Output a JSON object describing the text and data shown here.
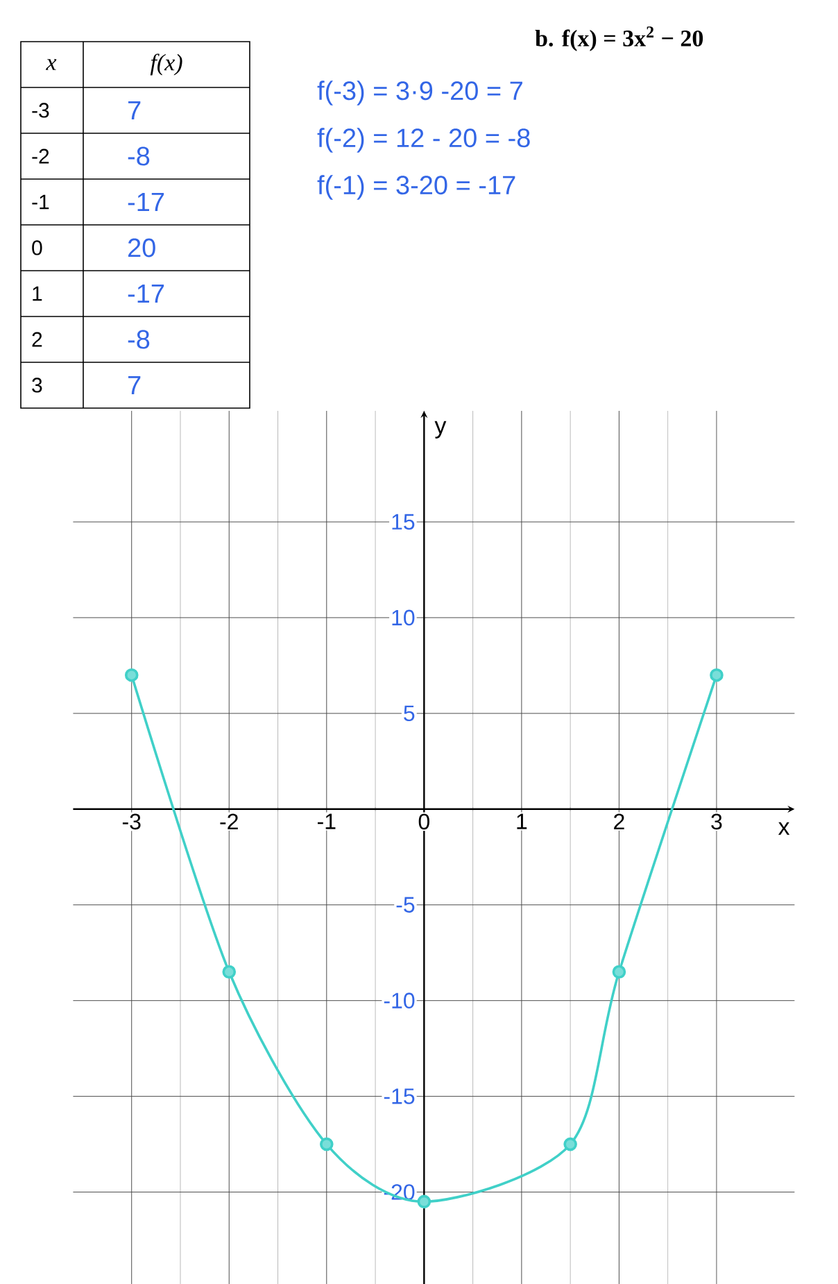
{
  "chart_data": {
    "type": "line",
    "title": "b.  f(x) = 3x$^{2}$ − 20",
    "xlabel": "x",
    "ylabel": "y",
    "annotations": [
      "f(-3) = 3·9 -20 = 7",
      "f(-2) = 12 - 20 = -8",
      "f(-1) = 3-20 = -17",
      "x",
      "f(x)",
      "-3",
      "-2",
      "-1",
      "0",
      "1",
      "2",
      "3",
      "7",
      "-8",
      "-17",
      "20",
      "-17",
      "-8",
      "7"
    ],
    "series": [
      {
        "color": "#40d0c8",
        "x": [
          -3,
          -2,
          -1,
          0,
          1.5,
          2,
          3
        ],
        "values": [
          7,
          -8.5,
          -17.5,
          -20.5,
          -17.5,
          -8.5,
          7
        ]
      }
    ],
    "xlim": [
      -3.6,
      3.8
    ],
    "ylim": [
      -24.8,
      20.8
    ],
    "xticks": [
      -3,
      -2,
      -1,
      0,
      1,
      2,
      3
    ],
    "yticks": [
      -20,
      -15,
      -10,
      -5,
      5,
      10,
      15
    ],
    "grid": true,
    "marker": "circle",
    "line_style": "solid"
  }
}
